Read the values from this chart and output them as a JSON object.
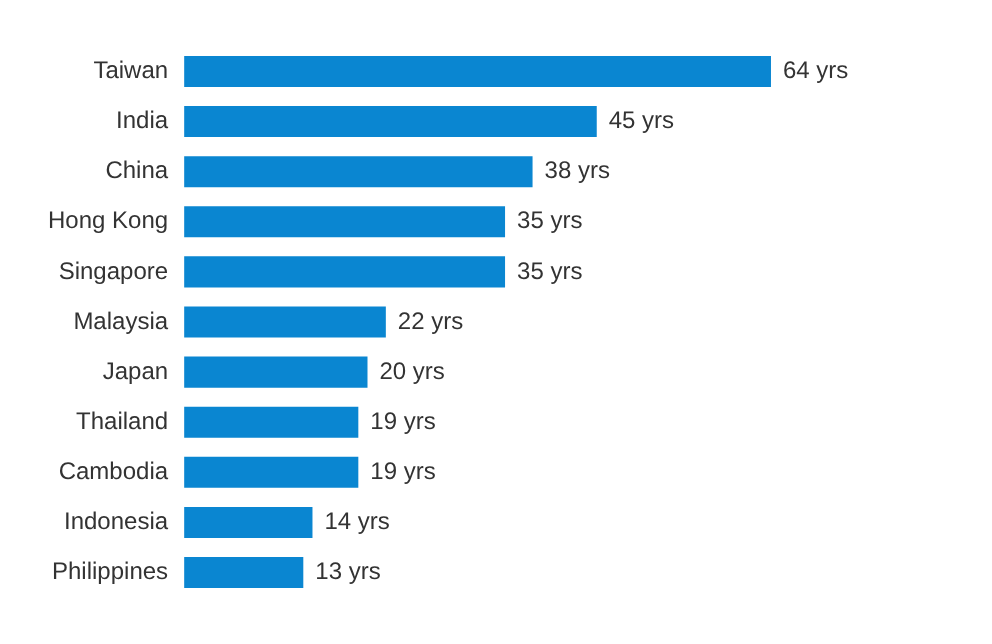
{
  "chart_data": {
    "type": "bar",
    "orientation": "horizontal",
    "categories": [
      "Taiwan",
      "India",
      "China",
      "Hong Kong",
      "Singapore",
      "Malaysia",
      "Japan",
      "Thailand",
      "Cambodia",
      "Indonesia",
      "Philippines"
    ],
    "values": [
      64,
      45,
      38,
      35,
      35,
      22,
      20,
      19,
      19,
      14,
      13
    ],
    "value_labels": [
      "64 yrs",
      "45 yrs",
      "38 yrs",
      "35 yrs",
      "35 yrs",
      "22 yrs",
      "20 yrs",
      "19 yrs",
      "19 yrs",
      "14 yrs",
      "13 yrs"
    ],
    "color": "#0a86d1",
    "grid": false,
    "legend": false
  }
}
